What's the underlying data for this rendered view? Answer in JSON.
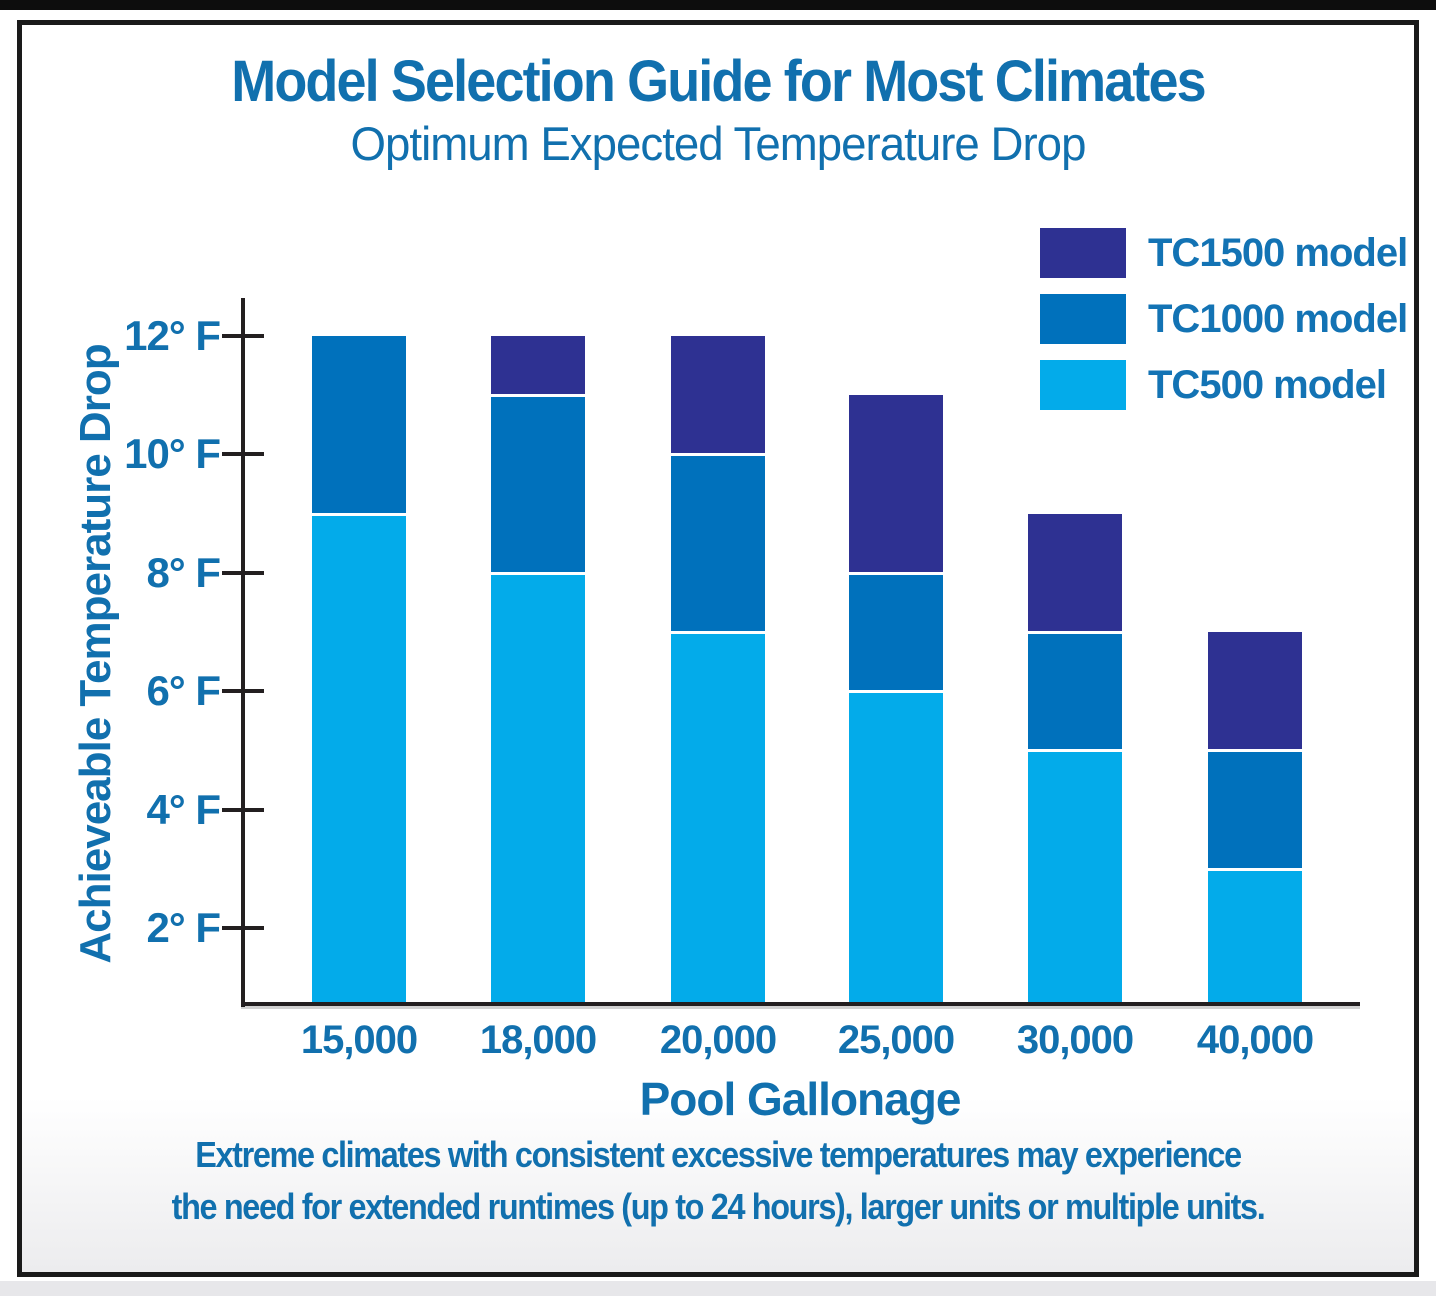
{
  "page": {
    "footer_line1": "Extreme climates with consistent excessive temperatures may experience",
    "footer_line2": "the need for extended runtimes (up to 24 hours), larger units or multiple units."
  },
  "colors": {
    "text_blue": "#1170AE",
    "axis_black": "#231F20",
    "separator_white": "#FFFFFF",
    "tc500_light_blue": "#03ABEA",
    "tc1000_medium_blue": "#0071BC",
    "tc1500_dark_blue": "#2E3192"
  },
  "chart_data": {
    "type": "bar",
    "stacked": true,
    "title": "Model Selection Guide for Most Climates",
    "subtitle": "Optimum Expected Temperature Drop",
    "xlabel": "Pool Gallonage",
    "ylabel": "Achieveable Temperature Drop",
    "categories": [
      "15,000",
      "18,000",
      "20,000",
      "25,000",
      "30,000",
      "40,000"
    ],
    "series": [
      {
        "name": "TC500 model",
        "color": "#03ABEA",
        "values": [
          9,
          8,
          7,
          6,
          5,
          3
        ]
      },
      {
        "name": "TC1000 model",
        "color": "#0071BC",
        "values": [
          3,
          3,
          3,
          2,
          2,
          2
        ]
      },
      {
        "name": "TC1500 model",
        "color": "#2E3192",
        "values": [
          0,
          1,
          2,
          3,
          2,
          2
        ]
      }
    ],
    "stack_totals": [
      12,
      12,
      12,
      11,
      9,
      7
    ],
    "units": "°F",
    "y_ticks": [
      {
        "value": 12,
        "label": "12° F"
      },
      {
        "value": 10,
        "label": "10° F"
      },
      {
        "value": 8,
        "label": "8° F"
      },
      {
        "value": 6,
        "label": "6° F"
      },
      {
        "value": 4,
        "label": "4° F"
      },
      {
        "value": 2,
        "label": "2° F"
      }
    ],
    "ylim": [
      0,
      12
    ],
    "grid": false,
    "legend_position": "top-right",
    "legend_order": [
      "TC1500 model",
      "TC1000 model",
      "TC500 model"
    ]
  }
}
